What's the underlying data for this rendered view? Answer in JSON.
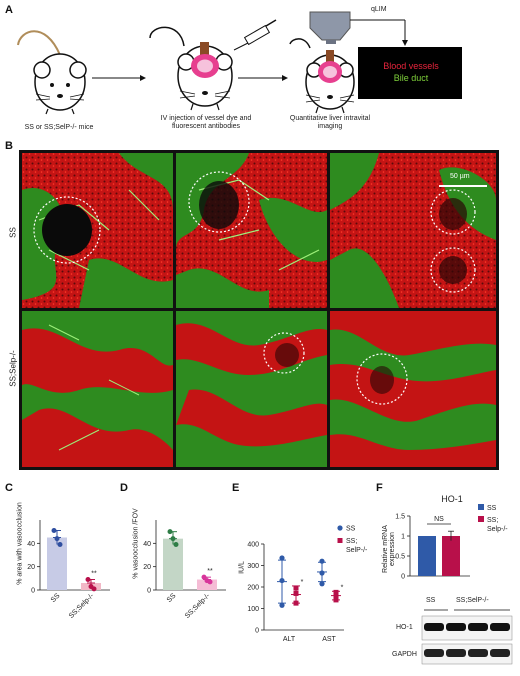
{
  "panel_letters": {
    "a": "A",
    "b": "B",
    "c": "C",
    "d": "D",
    "e": "E",
    "f": "F"
  },
  "panel_a": {
    "mice_label": "SS or SS;SelP-/- mice",
    "injection_label": "IV injection of vessel dye and fluorescent antibodies",
    "imaging_label": "Quantitative liver intravital imaging",
    "qlim_label": "qLIM",
    "legend_blood": "Blood vessels",
    "legend_bile": "Bile duct",
    "blood_color": "#e8243c",
    "bile_color": "#7fd13b"
  },
  "panel_b": {
    "row_labels": [
      "SS",
      "SS;Selp-/-"
    ],
    "scale_label": "50 µm",
    "bg_red": "#d81c1c",
    "bg_green": "#2e8b1f"
  },
  "chart_data": [
    {
      "type": "bar",
      "panel": "C",
      "ylabel": "% area with vasoocclusion",
      "categories": [
        "SS",
        "SS;Selp-/-"
      ],
      "values": [
        45,
        6
      ],
      "points": [
        [
          51,
          44,
          39
        ],
        [
          9,
          3,
          1
        ]
      ],
      "ylim": [
        0,
        60
      ],
      "yticks": [
        0,
        20,
        40
      ],
      "significance": [
        "",
        "**"
      ],
      "colors": [
        "#c7cbe6",
        "#f2b8c6"
      ],
      "point_colors": [
        "#2f4fa0",
        "#b8104a"
      ]
    },
    {
      "type": "bar",
      "panel": "D",
      "ylabel": "% vasoocclusion /FOV",
      "categories": [
        "SS",
        "SS;Selp-/-"
      ],
      "values": [
        44,
        9
      ],
      "points": [
        [
          50,
          44,
          39
        ],
        [
          11,
          8,
          7
        ]
      ],
      "ylim": [
        0,
        60
      ],
      "yticks": [
        0,
        20,
        40
      ],
      "significance": [
        "",
        "**"
      ],
      "colors": [
        "#c3d6c6",
        "#f5bcd5"
      ],
      "point_colors": [
        "#2e7d46",
        "#d8359b"
      ]
    },
    {
      "type": "scatter",
      "panel": "E",
      "ylabel": "IU/L",
      "categories": [
        "ALT",
        "AST"
      ],
      "ylim": [
        0,
        400
      ],
      "yticks": [
        0,
        100,
        200,
        300,
        400
      ],
      "series": [
        {
          "name": "SS",
          "means": [
            225,
            270
          ],
          "errors": [
            100,
            45
          ],
          "points": [
            [
              335,
              230,
              115
            ],
            [
              320,
              265,
              215
            ]
          ],
          "color": "#2f5aa8"
        },
        {
          "name": "SS; SelP-/-",
          "means": [
            165,
            160
          ],
          "errors": [
            40,
            20
          ],
          "points": [
            [
              195,
              170,
              125
            ],
            [
              175,
              160,
              140
            ]
          ],
          "color": "#b8104a"
        }
      ],
      "significance": [
        "*",
        "*"
      ]
    },
    {
      "type": "bar",
      "panel": "F",
      "title": "HO-1",
      "ylabel": "Relative mRNA expression",
      "categories": [
        "SS",
        "SS; Selp-/-"
      ],
      "values": [
        1.0,
        1.0
      ],
      "errors": [
        0,
        0.12
      ],
      "ylim": [
        0,
        1.5
      ],
      "yticks": [
        0,
        0.5,
        1,
        1.5
      ],
      "significance_label": "NS",
      "series_names": [
        "SS",
        "SS; Selp-/-"
      ],
      "colors": [
        "#2f5aa8",
        "#b8104a"
      ]
    }
  ],
  "x_labels_rotated": {
    "c": [
      "SS",
      "SS;Selp-/-"
    ],
    "d": [
      "SS",
      "SS;Selp-/-"
    ]
  },
  "western": {
    "lane_labels": [
      "SS",
      "SS;SelP-/-"
    ],
    "bands": [
      "HO-1",
      "GAPDH"
    ]
  }
}
